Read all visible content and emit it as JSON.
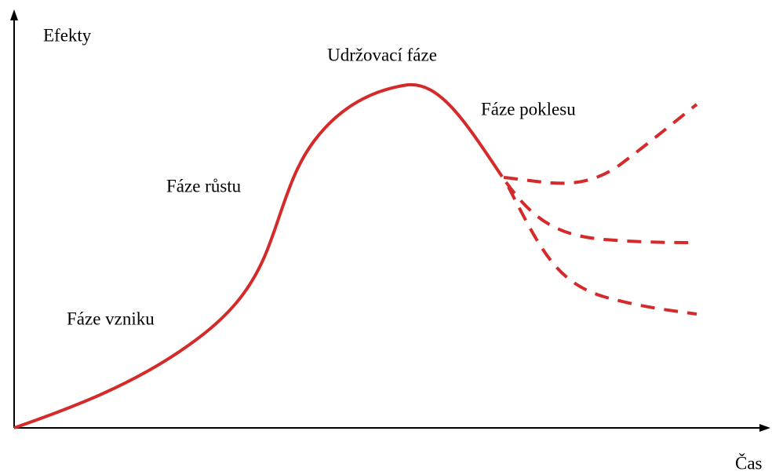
{
  "axes": {
    "y_label": "Efekty",
    "x_label": "Čas"
  },
  "phases": [
    {
      "label": "Fáze vzniku"
    },
    {
      "label": "Fáze růstu"
    },
    {
      "label": "Udržovací fáze"
    },
    {
      "label": "Fáze poklesu"
    }
  ]
}
